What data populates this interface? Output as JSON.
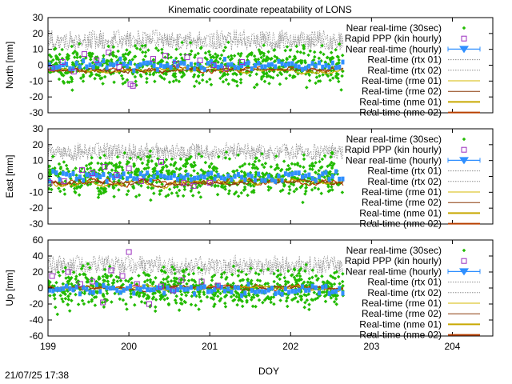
{
  "title": "Kinematic coordinate repeatability of LONS",
  "timestamp": "21/07/25 17:38",
  "xlabel": "DOY",
  "colors": {
    "nrt30": "#22bb00",
    "rapid": "#9b2fbf",
    "nrt_hourly": "#2f8fff",
    "rtx01": "#8c8c8c",
    "rtx02": "#8c8c8c",
    "rme01": "#d4b800",
    "rme02": "#8a3a0a",
    "nme01": "#c8a800",
    "nme02": "#b84000"
  },
  "chart_data": [
    {
      "type": "scatter",
      "panel": "north",
      "ylabel": "North [mm]",
      "xlim": [
        199,
        204.5
      ],
      "ylim": [
        -30,
        30
      ],
      "xticks": [
        199,
        200,
        201,
        202,
        203,
        204
      ],
      "yticks": [
        -30,
        -20,
        -10,
        0,
        10,
        20,
        30
      ],
      "legend": [
        "Near real-time (30sec)",
        "Rapid PPP (kin hourly)",
        "Near real-time (hourly)",
        "Real-time (rtx 01)",
        "Real-time (rtx 02)",
        "Real-time (rme 01)",
        "Real-time (rme 02)",
        "Real-time (nme 01)",
        "Real-time (nme 02)"
      ],
      "legend_position": "top-right",
      "data_end_doy": 202.65,
      "series_profile": {
        "nrt30_spread": 9,
        "hourly_offset": 0,
        "rtx_offset": 12,
        "rtx_spread": 10,
        "nme_offset": -3,
        "nme_spread": 5
      },
      "rapid_points": [
        [
          199.05,
          -2
        ],
        [
          199.18,
          2
        ],
        [
          199.32,
          -4
        ],
        [
          199.45,
          7
        ],
        [
          199.6,
          3
        ],
        [
          199.75,
          8
        ],
        [
          199.88,
          -1
        ],
        [
          200.02,
          -12
        ],
        [
          200.05,
          -13
        ],
        [
          200.3,
          4
        ],
        [
          200.45,
          6
        ],
        [
          200.58,
          1
        ],
        [
          200.72,
          5
        ],
        [
          200.88,
          3
        ],
        [
          201.05,
          0
        ],
        [
          201.2,
          -2
        ],
        [
          201.4,
          2
        ]
      ]
    },
    {
      "type": "scatter",
      "panel": "east",
      "ylabel": "East [mm]",
      "xlim": [
        199,
        204.5
      ],
      "ylim": [
        -30,
        30
      ],
      "xticks": [
        199,
        200,
        201,
        202,
        203,
        204
      ],
      "yticks": [
        -30,
        -20,
        -10,
        0,
        10,
        20,
        30
      ],
      "legend": [
        "Near real-time (30sec)",
        "Rapid PPP (kin hourly)",
        "Near real-time (hourly)",
        "Real-time (rtx 01)",
        "Real-time (rtx 02)",
        "Real-time (rme 01)",
        "Real-time (rme 02)",
        "Real-time (nme 01)",
        "Real-time (nme 02)"
      ],
      "legend_position": "top-right",
      "data_end_doy": 202.65,
      "series_profile": {
        "nrt30_spread": 9,
        "hourly_offset": 0,
        "rtx_offset": 12,
        "rtx_spread": 9,
        "nme_offset": -4,
        "nme_spread": 6
      },
      "rapid_points": [
        [
          199.02,
          -4
        ],
        [
          199.2,
          -3
        ],
        [
          199.42,
          4
        ],
        [
          199.55,
          2
        ],
        [
          199.7,
          6
        ],
        [
          199.85,
          1
        ],
        [
          200.0,
          5
        ],
        [
          200.15,
          -3
        ],
        [
          200.4,
          9
        ],
        [
          200.68,
          -4
        ],
        [
          200.8,
          -6
        ],
        [
          201.0,
          -4
        ]
      ]
    },
    {
      "type": "scatter",
      "panel": "up",
      "ylabel": "Up [mm]",
      "xlim": [
        199,
        204.5
      ],
      "ylim": [
        -60,
        60
      ],
      "xticks": [
        199,
        200,
        201,
        202,
        203,
        204
      ],
      "yticks": [
        -60,
        -40,
        -20,
        0,
        20,
        40,
        60
      ],
      "legend": [
        "Near real-time (30sec)",
        "Rapid PPP (kin hourly)",
        "Near real-time (hourly)",
        "Real-time (rtx 01)",
        "Real-time (rtx 02)",
        "Real-time (rme 01)",
        "Real-time (rme 02)",
        "Real-time (nme 01)",
        "Real-time (nme 02)"
      ],
      "legend_position": "top-right",
      "data_end_doy": 202.65,
      "series_profile": {
        "nrt30_spread": 18,
        "hourly_offset": -2,
        "rtx_offset": 20,
        "rtx_spread": 20,
        "nme_offset": 0,
        "nme_spread": 8
      },
      "rapid_points": [
        [
          199.05,
          15
        ],
        [
          199.25,
          20
        ],
        [
          199.4,
          5
        ],
        [
          199.55,
          8
        ],
        [
          199.68,
          -18
        ],
        [
          199.78,
          22
        ],
        [
          199.92,
          15
        ],
        [
          200.0,
          45
        ],
        [
          200.1,
          5
        ],
        [
          200.25,
          -20
        ],
        [
          200.4,
          2
        ],
        [
          200.55,
          -3
        ],
        [
          200.65,
          10
        ],
        [
          200.9,
          8
        ],
        [
          201.1,
          3
        ]
      ]
    }
  ]
}
